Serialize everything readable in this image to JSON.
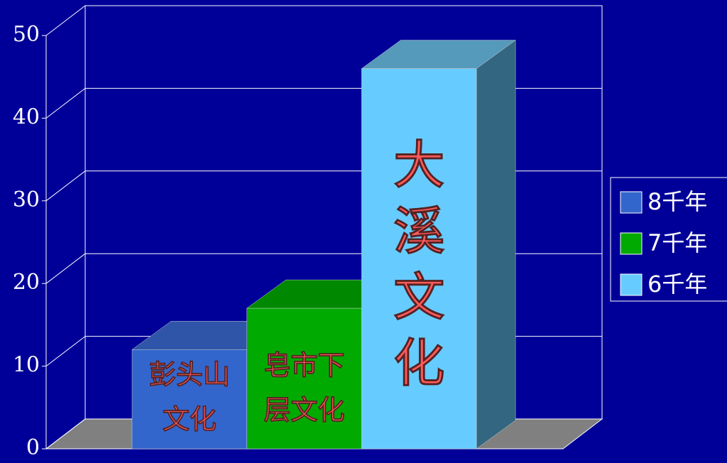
{
  "chart_data": {
    "type": "bar3d",
    "categories": [
      null
    ],
    "series": [
      {
        "name": "8千年",
        "color": "#3366cc",
        "top": "#2f55a8",
        "side": "#264a8f",
        "values": [
          12
        ],
        "label": [
          "彭头山",
          "文化"
        ]
      },
      {
        "name": "7千年",
        "color": "#00aa00",
        "top": "#008800",
        "side": "#006600",
        "values": [
          17
        ],
        "label": [
          "皂市下",
          "层文化"
        ]
      },
      {
        "name": "6千年",
        "color": "#66ccff",
        "top": "#5599bb",
        "side": "#336680",
        "values": [
          46
        ],
        "label": [
          "大",
          "溪",
          "文",
          "化"
        ],
        "vertical": true
      }
    ],
    "ylim": [
      0,
      50
    ],
    "yticks": [
      0,
      10,
      20,
      30,
      40,
      50
    ],
    "grid": true,
    "legend": "right"
  }
}
